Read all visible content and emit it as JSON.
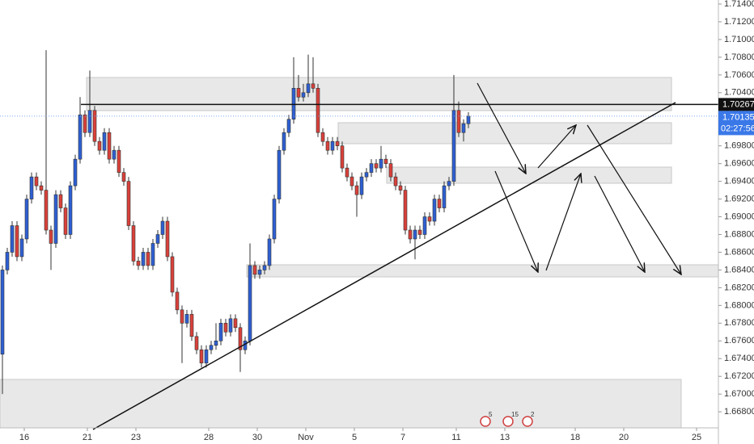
{
  "chart_data": {
    "type": "candlestick",
    "up_color": "#2e5fd3",
    "down_color": "#d9413a",
    "open": [
      1.6745,
      1.684,
      1.686,
      1.689,
      1.6855,
      1.6875,
      1.692,
      1.6945,
      1.6935,
      1.693,
      1.6885,
      1.687,
      1.6925,
      1.691,
      1.688,
      1.6935,
      1.6965,
      1.7015,
      1.6995,
      1.702,
      1.6985,
      1.6975,
      1.6995,
      1.6965,
      1.6975,
      1.695,
      1.694,
      1.689,
      1.685,
      1.6845,
      1.686,
      1.6845,
      1.687,
      1.688,
      1.6895,
      1.6855,
      1.6815,
      1.6795,
      1.678,
      1.679,
      1.6765,
      1.675,
      1.6735,
      1.675,
      1.6755,
      1.676,
      1.678,
      1.677,
      1.6785,
      1.6775,
      1.675,
      1.676,
      1.6845,
      1.6835,
      1.684,
      1.6845,
      1.6875,
      1.692,
      1.6975,
      1.6995,
      1.701,
      1.7045,
      1.7035,
      1.704,
      1.705,
      1.7045,
      1.6995,
      1.6985,
      1.6975,
      1.6985,
      1.698,
      1.6955,
      1.6945,
      1.6935,
      1.6925,
      1.6945,
      1.695,
      1.696,
      1.6955,
      1.6965,
      1.696,
      1.6945,
      1.6935,
      1.693,
      1.6885,
      1.6875,
      1.6885,
      1.688,
      1.69,
      1.6895,
      1.692,
      1.691,
      1.6935,
      1.694,
      1.702,
      1.6995,
      1.7005
    ],
    "high": [
      1.6845,
      1.6865,
      1.6895,
      1.6895,
      1.688,
      1.6925,
      1.695,
      1.695,
      1.694,
      1.7088,
      1.689,
      1.693,
      1.693,
      1.6915,
      1.694,
      1.697,
      1.7035,
      1.702,
      1.7065,
      1.7025,
      1.699,
      1.7,
      1.7,
      1.698,
      1.698,
      1.6955,
      1.6945,
      1.6895,
      1.6855,
      1.6865,
      1.6865,
      1.6875,
      1.6885,
      1.69,
      1.69,
      1.686,
      1.682,
      1.68,
      1.6795,
      1.6795,
      1.677,
      1.6755,
      1.6755,
      1.676,
      1.678,
      1.6785,
      1.6785,
      1.679,
      1.679,
      1.678,
      1.6765,
      1.687,
      1.685,
      1.6845,
      1.685,
      1.688,
      1.6925,
      1.698,
      1.7,
      1.7015,
      1.708,
      1.706,
      1.705,
      1.7083,
      1.708,
      1.705,
      1.7,
      1.699,
      1.699,
      1.699,
      1.6985,
      1.696,
      1.695,
      1.694,
      1.695,
      1.6955,
      1.6965,
      1.6965,
      1.698,
      1.697,
      1.6965,
      1.695,
      1.694,
      1.6935,
      1.689,
      1.689,
      1.689,
      1.6905,
      1.6905,
      1.6925,
      1.6925,
      1.694,
      1.6945,
      1.706,
      1.703,
      1.701,
      1.7018
    ],
    "low": [
      1.67,
      1.6835,
      1.6855,
      1.685,
      1.685,
      1.687,
      1.6915,
      1.693,
      1.6925,
      1.688,
      1.684,
      1.6865,
      1.6905,
      1.6875,
      1.6875,
      1.693,
      1.696,
      1.699,
      1.699,
      1.698,
      1.697,
      1.697,
      1.696,
      1.696,
      1.6945,
      1.6935,
      1.6885,
      1.6845,
      1.684,
      1.684,
      1.684,
      1.684,
      1.6865,
      1.6875,
      1.685,
      1.681,
      1.679,
      1.6735,
      1.6775,
      1.676,
      1.6745,
      1.673,
      1.673,
      1.6745,
      1.675,
      1.6755,
      1.6765,
      1.6765,
      1.677,
      1.6725,
      1.6745,
      1.6755,
      1.683,
      1.683,
      1.6835,
      1.684,
      1.687,
      1.6915,
      1.697,
      1.699,
      1.7005,
      1.703,
      1.703,
      1.7035,
      1.704,
      1.699,
      1.698,
      1.697,
      1.697,
      1.6975,
      1.695,
      1.694,
      1.693,
      1.69,
      1.692,
      1.694,
      1.6945,
      1.695,
      1.695,
      1.6955,
      1.694,
      1.693,
      1.6925,
      1.688,
      1.687,
      1.6852,
      1.6875,
      1.6875,
      1.689,
      1.689,
      1.6905,
      1.6905,
      1.693,
      1.6935,
      1.699,
      1.6985,
      1.7
    ],
    "close": [
      1.684,
      1.686,
      1.689,
      1.6855,
      1.6875,
      1.692,
      1.6945,
      1.6935,
      1.693,
      1.6885,
      1.687,
      1.6925,
      1.691,
      1.688,
      1.6935,
      1.6965,
      1.7015,
      1.6995,
      1.702,
      1.6985,
      1.6975,
      1.6995,
      1.6965,
      1.6975,
      1.695,
      1.694,
      1.689,
      1.685,
      1.6845,
      1.686,
      1.6845,
      1.687,
      1.688,
      1.6895,
      1.6855,
      1.6815,
      1.6795,
      1.678,
      1.679,
      1.6765,
      1.675,
      1.6735,
      1.675,
      1.6755,
      1.676,
      1.678,
      1.677,
      1.6785,
      1.6775,
      1.675,
      1.676,
      1.6845,
      1.6835,
      1.684,
      1.6845,
      1.6875,
      1.692,
      1.6975,
      1.6995,
      1.701,
      1.7045,
      1.7035,
      1.704,
      1.705,
      1.7045,
      1.6995,
      1.6985,
      1.6975,
      1.6985,
      1.698,
      1.6955,
      1.6945,
      1.6935,
      1.6925,
      1.6945,
      1.695,
      1.696,
      1.6955,
      1.6965,
      1.696,
      1.6945,
      1.6935,
      1.693,
      1.6885,
      1.6875,
      1.6885,
      1.688,
      1.69,
      1.6895,
      1.692,
      1.691,
      1.6935,
      1.694,
      1.702,
      1.6995,
      1.7005,
      1.70135
    ],
    "xlim": [
      -0.5,
      147.5
    ],
    "xticks": [
      {
        "value": 4.5,
        "label": "16"
      },
      {
        "value": 17.5,
        "label": "21"
      },
      {
        "value": 27.5,
        "label": "23"
      },
      {
        "value": 42.5,
        "label": "28"
      },
      {
        "value": 52.5,
        "label": "30"
      },
      {
        "value": 62.5,
        "label": "Nov"
      },
      {
        "value": 72.5,
        "label": "5"
      },
      {
        "value": 82.5,
        "label": "7"
      },
      {
        "value": 93.5,
        "label": "11"
      },
      {
        "value": 103.5,
        "label": "13"
      },
      {
        "value": 118,
        "label": "18"
      },
      {
        "value": 128,
        "label": "20"
      },
      {
        "value": 143,
        "label": "25"
      }
    ],
    "ylim": [
      1.66619,
      1.714455
    ],
    "yticks": [
      {
        "value": 1.714,
        "label": "1.71400"
      },
      {
        "value": 1.712,
        "label": "1.71200"
      },
      {
        "value": 1.71,
        "label": "1.71000"
      },
      {
        "value": 1.708,
        "label": "1.70800"
      },
      {
        "value": 1.706,
        "label": "1.70600"
      },
      {
        "value": 1.704,
        "label": "1.70400"
      },
      {
        "value": 1.702,
        "label": "1.70200"
      },
      {
        "value": 1.7,
        "label": "1.70000"
      },
      {
        "value": 1.698,
        "label": "1.69800"
      },
      {
        "value": 1.696,
        "label": "1.69600"
      },
      {
        "value": 1.694,
        "label": "1.69400"
      },
      {
        "value": 1.692,
        "label": "1.69200"
      },
      {
        "value": 1.69,
        "label": "1.69000"
      },
      {
        "value": 1.688,
        "label": "1.68800"
      },
      {
        "value": 1.686,
        "label": "1.68600"
      },
      {
        "value": 1.684,
        "label": "1.68400"
      },
      {
        "value": 1.682,
        "label": "1.68200"
      },
      {
        "value": 1.68,
        "label": "1.68000"
      },
      {
        "value": 1.678,
        "label": "1.67800"
      },
      {
        "value": 1.676,
        "label": "1.67600"
      },
      {
        "value": 1.674,
        "label": "1.67400"
      },
      {
        "value": 1.672,
        "label": "1.67200"
      },
      {
        "value": 1.67,
        "label": "1.67000"
      },
      {
        "value": 1.668,
        "label": "1.66800"
      }
    ],
    "level_line": 1.70267,
    "last_price": 1.70135,
    "countdown": "02:27:56",
    "event_counts": [
      5,
      15,
      2
    ]
  }
}
